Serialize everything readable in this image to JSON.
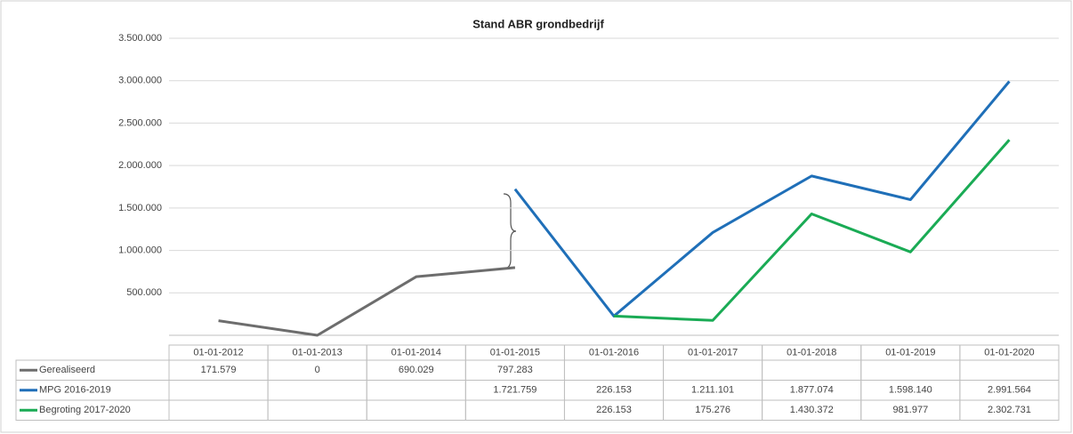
{
  "chart_data": {
    "type": "line",
    "title": "Stand ABR grondbedrijf",
    "categories": [
      "01-01-2012",
      "01-01-2013",
      "01-01-2014",
      "01-01-2015",
      "01-01-2016",
      "01-01-2017",
      "01-01-2018",
      "01-01-2019",
      "01-01-2020"
    ],
    "series": [
      {
        "name": "Gerealiseerd",
        "color": "#6d6d6d",
        "values": [
          171579,
          0,
          690029,
          797283,
          null,
          null,
          null,
          null,
          null
        ],
        "value_labels": [
          "171.579",
          "0",
          "690.029",
          "797.283",
          null,
          null,
          null,
          null,
          null
        ]
      },
      {
        "name": "MPG 2016-2019",
        "color": "#1f6fb8",
        "values": [
          null,
          null,
          null,
          1721759,
          226153,
          1211101,
          1877074,
          1598140,
          2991564
        ],
        "value_labels": [
          null,
          null,
          null,
          "1.721.759",
          "226.153",
          "1.211.101",
          "1.877.074",
          "1.598.140",
          "2.991.564"
        ]
      },
      {
        "name": "Begroting 2017-2020",
        "color": "#1aab55",
        "values": [
          null,
          null,
          null,
          null,
          226153,
          175276,
          1430372,
          981977,
          2302731
        ],
        "value_labels": [
          null,
          null,
          null,
          null,
          "226.153",
          "175.276",
          "1.430.372",
          "981.977",
          "2.302.731"
        ]
      }
    ],
    "ylim": [
      0,
      3500000
    ],
    "yticks": [
      {
        "value": 500000,
        "label": "500.000"
      },
      {
        "value": 1000000,
        "label": "1.000.000"
      },
      {
        "value": 1500000,
        "label": "1.500.000"
      },
      {
        "value": 2000000,
        "label": "2.000.000"
      },
      {
        "value": 2500000,
        "label": "2.500.000"
      },
      {
        "value": 3000000,
        "label": "3.000.000"
      },
      {
        "value": 3500000,
        "label": "3.500.000"
      }
    ],
    "grid": true
  }
}
